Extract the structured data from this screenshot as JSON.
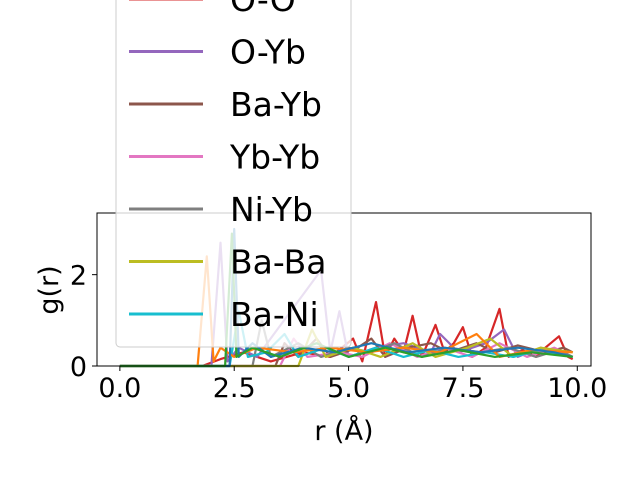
{
  "chart_data": {
    "type": "line",
    "xlabel": "r (Å)",
    "ylabel": "g(r)",
    "xlim": [
      -0.5,
      10.3
    ],
    "ylim": [
      0,
      3.35
    ],
    "x_ticks": [
      0.0,
      2.5,
      5.0,
      7.5,
      10.0
    ],
    "x_tick_labels": [
      "0.0",
      "2.5",
      "5.0",
      "7.5",
      "10.0"
    ],
    "y_ticks": [
      0,
      2
    ],
    "y_tick_labels": [
      "0",
      "2"
    ],
    "grid": false,
    "legend_position": "upper-left (overflowing above the axes)",
    "series": [
      {
        "name": "O-O",
        "color": "#d62728",
        "points": [
          [
            0,
            0
          ],
          [
            1.8,
            0
          ],
          [
            2.2,
            0.15
          ],
          [
            2.7,
            0.3
          ],
          [
            3.3,
            0.1
          ],
          [
            4.0,
            0.3
          ],
          [
            4.6,
            0.2
          ],
          [
            5.1,
            0.6
          ],
          [
            5.3,
            0.1
          ],
          [
            5.6,
            1.4
          ],
          [
            5.8,
            0.2
          ],
          [
            6.0,
            0.6
          ],
          [
            6.2,
            0.3
          ],
          [
            6.4,
            1.1
          ],
          [
            6.6,
            0.2
          ],
          [
            6.9,
            0.9
          ],
          [
            7.1,
            0.3
          ],
          [
            7.3,
            0.5
          ],
          [
            7.5,
            0.85
          ],
          [
            7.7,
            0.2
          ],
          [
            8.0,
            0.4
          ],
          [
            8.3,
            1.25
          ],
          [
            8.5,
            0.2
          ],
          [
            8.8,
            0.35
          ],
          [
            9.1,
            0.2
          ],
          [
            9.3,
            0.4
          ],
          [
            9.6,
            0.65
          ],
          [
            9.8,
            0.2
          ],
          [
            9.9,
            0.15
          ]
        ]
      },
      {
        "name": "O-Yb",
        "color": "#9467bd",
        "points": [
          [
            0,
            0
          ],
          [
            2.0,
            0
          ],
          [
            2.2,
            2.7
          ],
          [
            2.35,
            0.1
          ],
          [
            2.6,
            0.4
          ],
          [
            3.0,
            0.2
          ],
          [
            4.4,
            2.1
          ],
          [
            4.6,
            0.3
          ],
          [
            4.8,
            1.2
          ],
          [
            5.0,
            0.2
          ],
          [
            5.6,
            0.4
          ],
          [
            6.2,
            0.5
          ],
          [
            6.8,
            0.3
          ],
          [
            7.0,
            0.7
          ],
          [
            7.4,
            0.3
          ],
          [
            8.0,
            0.5
          ],
          [
            8.4,
            0.8
          ],
          [
            8.7,
            0.2
          ],
          [
            9.2,
            0.4
          ],
          [
            9.6,
            0.3
          ],
          [
            9.9,
            0.2
          ]
        ]
      },
      {
        "name": "Ba-Yb",
        "color": "#8c564b",
        "points": [
          [
            0,
            0
          ],
          [
            3.4,
            0
          ],
          [
            3.6,
            0.5
          ],
          [
            3.9,
            0.2
          ],
          [
            4.3,
            0.6
          ],
          [
            4.6,
            0.2
          ],
          [
            5.2,
            0.4
          ],
          [
            5.5,
            0.6
          ],
          [
            5.8,
            0.2
          ],
          [
            6.3,
            0.4
          ],
          [
            6.8,
            0.5
          ],
          [
            7.2,
            0.3
          ],
          [
            7.8,
            0.5
          ],
          [
            8.2,
            0.3
          ],
          [
            8.7,
            0.45
          ],
          [
            9.3,
            0.3
          ],
          [
            9.7,
            0.4
          ],
          [
            9.9,
            0.3
          ]
        ]
      },
      {
        "name": "Yb-Yb",
        "color": "#e377c2",
        "points": [
          [
            0,
            0
          ],
          [
            3.5,
            0
          ],
          [
            3.8,
            0.6
          ],
          [
            4.1,
            0.2
          ],
          [
            4.8,
            0.3
          ],
          [
            5.3,
            0.2
          ],
          [
            5.9,
            0.5
          ],
          [
            6.5,
            0.2
          ],
          [
            7.1,
            0.4
          ],
          [
            7.7,
            0.2
          ],
          [
            8.3,
            0.5
          ],
          [
            8.9,
            0.2
          ],
          [
            9.5,
            0.4
          ],
          [
            9.9,
            0.2
          ]
        ]
      },
      {
        "name": "Ni-Yb",
        "color": "#7f7f7f",
        "points": [
          [
            0,
            0
          ],
          [
            2.9,
            0
          ],
          [
            3.1,
            1.0
          ],
          [
            3.3,
            0.2
          ],
          [
            3.9,
            0.5
          ],
          [
            4.4,
            0.2
          ],
          [
            5.0,
            0.4
          ],
          [
            5.5,
            0.3
          ],
          [
            6.0,
            0.5
          ],
          [
            6.6,
            0.2
          ],
          [
            7.2,
            0.4
          ],
          [
            7.9,
            0.3
          ],
          [
            8.5,
            0.4
          ],
          [
            9.1,
            0.2
          ],
          [
            9.6,
            0.35
          ],
          [
            9.9,
            0.2
          ]
        ]
      },
      {
        "name": "Ba-Ba",
        "color": "#bcbd22",
        "points": [
          [
            0,
            0
          ],
          [
            3.9,
            0
          ],
          [
            4.2,
            0.8
          ],
          [
            4.5,
            0.2
          ],
          [
            5.1,
            0.4
          ],
          [
            5.7,
            0.2
          ],
          [
            6.4,
            0.5
          ],
          [
            6.9,
            0.2
          ],
          [
            7.6,
            0.4
          ],
          [
            8.1,
            0.6
          ],
          [
            8.6,
            0.2
          ],
          [
            9.2,
            0.4
          ],
          [
            9.9,
            0.3
          ]
        ]
      },
      {
        "name": "Ba-Ni",
        "color": "#17becf",
        "points": [
          [
            0,
            0
          ],
          [
            2.4,
            0
          ],
          [
            2.6,
            1.2
          ],
          [
            2.8,
            0.2
          ],
          [
            3.2,
            0.3
          ],
          [
            3.6,
            0.7
          ],
          [
            3.9,
            0.2
          ],
          [
            4.5,
            0.4
          ],
          [
            5.0,
            0.2
          ],
          [
            5.6,
            0.4
          ],
          [
            6.2,
            0.2
          ],
          [
            6.8,
            0.35
          ],
          [
            7.4,
            0.2
          ],
          [
            8.0,
            0.3
          ],
          [
            8.6,
            0.2
          ],
          [
            9.2,
            0.35
          ],
          [
            9.9,
            0.2
          ]
        ]
      },
      {
        "color": "#ff7f0e",
        "points": [
          [
            0,
            0
          ],
          [
            1.7,
            0
          ],
          [
            1.9,
            2.4
          ],
          [
            2.05,
            0.1
          ],
          [
            2.2,
            0.4
          ],
          [
            2.5,
            0.2
          ],
          [
            3.0,
            0.4
          ],
          [
            3.8,
            0.3
          ],
          [
            4.6,
            0.4
          ],
          [
            5.4,
            0.3
          ],
          [
            6.2,
            0.4
          ],
          [
            7.0,
            0.3
          ],
          [
            7.8,
            0.7
          ],
          [
            8.3,
            0.2
          ],
          [
            9.0,
            0.35
          ],
          [
            9.9,
            0.3
          ]
        ]
      },
      {
        "color": "#1f77b4",
        "points": [
          [
            0,
            0
          ],
          [
            2.4,
            0
          ],
          [
            2.5,
            3.0
          ],
          [
            2.6,
            0.2
          ],
          [
            2.9,
            0.5
          ],
          [
            3.3,
            0.2
          ],
          [
            4.0,
            0.4
          ],
          [
            4.7,
            0.3
          ],
          [
            5.5,
            0.5
          ],
          [
            6.3,
            0.3
          ],
          [
            7.1,
            0.4
          ],
          [
            7.9,
            0.3
          ],
          [
            8.7,
            0.4
          ],
          [
            9.5,
            0.3
          ],
          [
            9.9,
            0.2
          ]
        ]
      },
      {
        "color": "#2ca02c",
        "points": [
          [
            0,
            0
          ],
          [
            2.3,
            0
          ],
          [
            2.45,
            2.9
          ],
          [
            2.55,
            0.2
          ],
          [
            2.9,
            0.4
          ],
          [
            3.5,
            0.2
          ],
          [
            4.3,
            0.5
          ],
          [
            5.0,
            0.2
          ],
          [
            5.8,
            0.4
          ],
          [
            6.6,
            0.2
          ],
          [
            7.4,
            0.35
          ],
          [
            8.2,
            0.2
          ],
          [
            9.0,
            0.3
          ],
          [
            9.9,
            0.2
          ]
        ]
      }
    ]
  }
}
